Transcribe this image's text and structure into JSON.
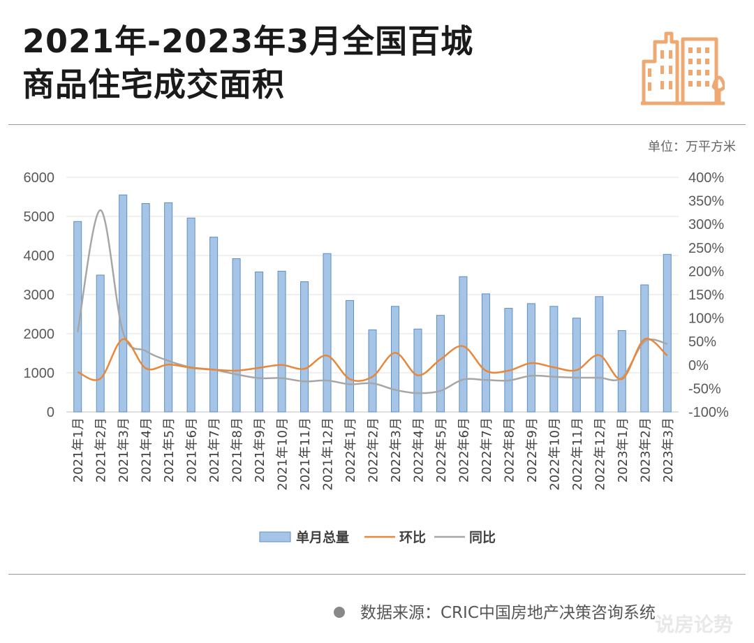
{
  "title_line1": "2021年-2023年3月全国百城",
  "title_line2": "商品住宅成交面积",
  "unit": "单位：万平方米",
  "source": "数据来源：CRIC中国房地产决策咨询系统",
  "watermark": "说房论势",
  "logo_icon": "building-icon",
  "colors": {
    "bar_fill": "#a6c5e6",
    "bar_stroke": "#5b8ec4",
    "mom_line": "#e8873a",
    "yoy_line": "#a6a6a6",
    "logo": "#eea872"
  },
  "chart_data": {
    "type": "bar",
    "categories": [
      "2021年1月",
      "2021年2月",
      "2021年3月",
      "2021年4月",
      "2021年5月",
      "2021年6月",
      "2021年7月",
      "2021年8月",
      "2021年9月",
      "2021年10月",
      "2021年11月",
      "2021年12月",
      "2022年1月",
      "2022年2月",
      "2022年3月",
      "2022年4月",
      "2022年5月",
      "2022年6月",
      "2022年7月",
      "2022年8月",
      "2022年9月",
      "2022年10月",
      "2022年11月",
      "2022年12月",
      "2023年1月",
      "2023年2月",
      "2023年3月"
    ],
    "series": [
      {
        "name": "单月总量",
        "type": "bar",
        "axis": "left",
        "values": [
          4870,
          3500,
          5550,
          5330,
          5350,
          4960,
          4470,
          3920,
          3580,
          3600,
          3330,
          4050,
          2850,
          2100,
          2700,
          2120,
          2470,
          3460,
          3020,
          2650,
          2770,
          2700,
          2400,
          2950,
          2080,
          3250,
          4030
        ]
      },
      {
        "name": "环比",
        "type": "line",
        "axis": "right",
        "values": [
          -15,
          -29,
          55,
          -7,
          1,
          -6,
          -10,
          -12,
          -6,
          0,
          -8,
          20,
          -30,
          -25,
          26,
          -22,
          12,
          40,
          -12,
          -12,
          4,
          -5,
          -11,
          21,
          -30,
          55,
          20
        ]
      },
      {
        "name": "同比",
        "type": "line",
        "axis": "right",
        "values": [
          70,
          330,
          70,
          30,
          9,
          -5,
          -10,
          -20,
          -28,
          -28,
          -35,
          -33,
          -41,
          -39,
          -53,
          -60,
          -55,
          -31,
          -32,
          -33,
          -23,
          -25,
          -27,
          -27,
          -27,
          50,
          45
        ]
      }
    ],
    "y_left": {
      "min": 0,
      "max": 6000,
      "ticks": [
        0,
        1000,
        2000,
        3000,
        4000,
        5000,
        6000
      ]
    },
    "y_right": {
      "min": -100,
      "max": 400,
      "ticks": [
        "-100%",
        "-50%",
        "0%",
        "50%",
        "100%",
        "150%",
        "200%",
        "250%",
        "300%",
        "350%",
        "400%"
      ]
    },
    "grid": true,
    "legend_position": "bottom"
  }
}
